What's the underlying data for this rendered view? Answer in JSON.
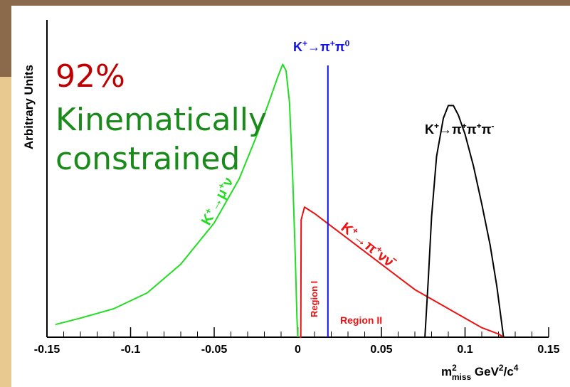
{
  "chart_data": {
    "type": "line",
    "ylabel": "Arbitrary Units",
    "xlabel": {
      "base": "m",
      "sup": "2",
      "sub": "miss",
      "unit_base": " GeV",
      "unit_sup1": "2",
      "unit_mid": "/c",
      "unit_sup2": "4"
    },
    "xlim": [
      -0.15,
      0.15
    ],
    "ylim": [
      0,
      1
    ],
    "x_ticks": [
      -0.15,
      -0.1,
      -0.05,
      0,
      0.05,
      0.1,
      0.15
    ],
    "x_tick_labels": [
      "-0.15",
      "-0.1",
      "-0.05",
      "0",
      "0.05",
      "0.1",
      "0.15"
    ],
    "series": [
      {
        "decay": "k-mu-nu",
        "color": "#22dd22",
        "x": [
          -0.145,
          -0.13,
          -0.11,
          -0.09,
          -0.07,
          -0.05,
          -0.035,
          -0.025,
          -0.018,
          -0.012,
          -0.009,
          -0.007,
          -0.005,
          -0.003,
          -0.0015,
          -0.0005,
          0.0
        ],
        "y": [
          0.04,
          0.06,
          0.09,
          0.14,
          0.23,
          0.36,
          0.5,
          0.63,
          0.73,
          0.82,
          0.86,
          0.84,
          0.74,
          0.5,
          0.25,
          0.06,
          0.0
        ]
      },
      {
        "decay": "k-pi-nu-nu",
        "color": "#ee1111",
        "x": [
          0.001,
          0.0018,
          0.002,
          0.004,
          0.01,
          0.02,
          0.03,
          0.04,
          0.05,
          0.06,
          0.07,
          0.08,
          0.09,
          0.1,
          0.11,
          0.12,
          0.123
        ],
        "y": [
          0.0,
          0.0,
          0.37,
          0.41,
          0.39,
          0.35,
          0.31,
          0.27,
          0.23,
          0.19,
          0.15,
          0.12,
          0.09,
          0.06,
          0.03,
          0.01,
          0.0
        ]
      },
      {
        "decay": "k-3pi",
        "color": "#000000",
        "x": [
          0.076,
          0.078,
          0.08,
          0.083,
          0.087,
          0.09,
          0.093,
          0.096,
          0.1,
          0.105,
          0.11,
          0.115,
          0.119,
          0.121,
          0.123
        ],
        "y": [
          0.0,
          0.18,
          0.38,
          0.57,
          0.69,
          0.73,
          0.73,
          0.7,
          0.64,
          0.54,
          0.42,
          0.29,
          0.16,
          0.08,
          0.0
        ]
      },
      {
        "decay": "k-pi-pi0",
        "color": "#1111ee",
        "vertical_x": 0.018
      }
    ],
    "annotations": {
      "k_pi_pi0": {
        "K": "K",
        "sup1": "+",
        "arrow": "→π",
        "sup2": "+",
        "pi": "π",
        "sup3": "0"
      },
      "k_3pi": {
        "K": "K",
        "sup1": "+",
        "arrow": "→π",
        "sup2": "+",
        "pi1": "π",
        "sup3": "+",
        "pi2": "π",
        "sup4": "-"
      },
      "k_mu_nu": {
        "K": "K",
        "sup1": "+",
        "arrow": "→μ",
        "sup2": "+",
        "nu": "ν"
      },
      "k_pi_nu_nu": {
        "K": "K",
        "sup1": "+",
        "arrow": "→π",
        "sup2": "+",
        "nu1": "ν",
        "nu2": "ν̄"
      },
      "region1": "Region I",
      "region2": "Region II"
    }
  },
  "overlay": {
    "percent": "92%",
    "line1": "Kinematically",
    "line2": "constrained",
    "percent_color": "#c00000",
    "text_color": "#1a8a1a"
  }
}
